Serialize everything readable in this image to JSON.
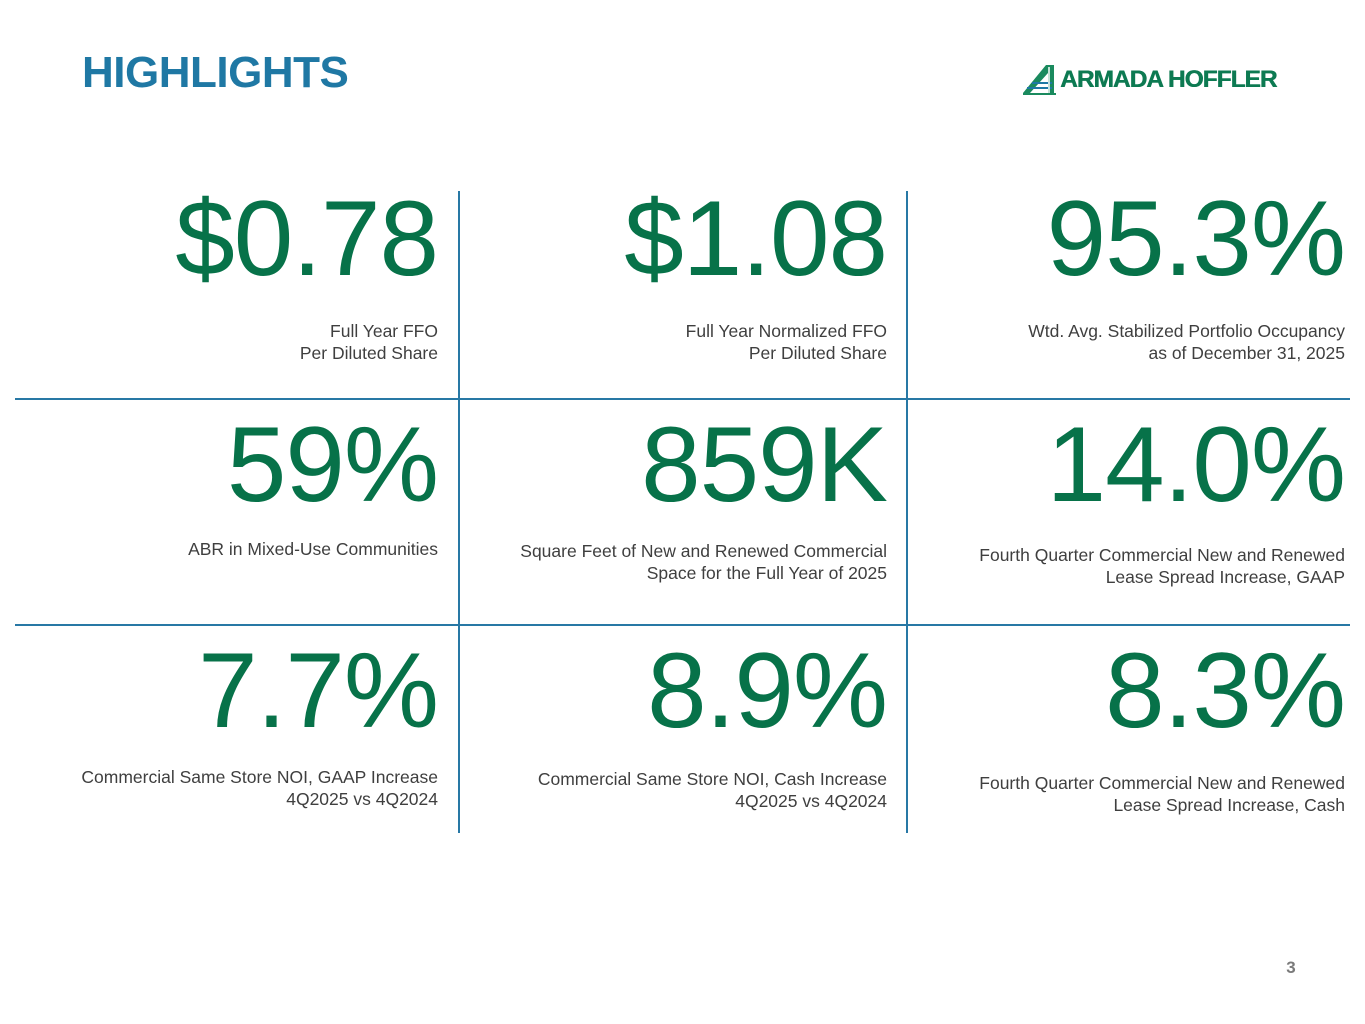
{
  "header": {
    "title": "HIGHLIGHTS",
    "logo_text": "ARMADA HOFFLER"
  },
  "metrics": [
    {
      "value": "$0.78",
      "label_lines": [
        "Full Year FFO",
        "Per Diluted Share"
      ]
    },
    {
      "value": "$1.08",
      "label_lines": [
        "Full Year Normalized FFO",
        "Per Diluted Share"
      ]
    },
    {
      "value": "95.3%",
      "label_lines": [
        "Wtd. Avg. Stabilized Portfolio Occupancy",
        "as of December 31, 2025"
      ]
    },
    {
      "value": "59%",
      "label_lines": [
        "ABR in Mixed-Use Communities"
      ]
    },
    {
      "value": "859K",
      "label_lines": [
        "Square Feet of New and Renewed Commercial",
        "Space for the Full Year of 2025"
      ]
    },
    {
      "value": "14.0%",
      "label_lines": [
        "Fourth Quarter Commercial New and Renewed",
        "Lease Spread Increase, GAAP"
      ]
    },
    {
      "value": "7.7%",
      "label_lines": [
        "Commercial Same Store NOI, GAAP Increase",
        "4Q2025 vs 4Q2024"
      ]
    },
    {
      "value": "8.9%",
      "label_lines": [
        "Commercial Same Store NOI, Cash Increase",
        "4Q2025 vs 4Q2024"
      ]
    },
    {
      "value": "8.3%",
      "label_lines": [
        "Fourth Quarter Commercial New and Renewed",
        "Lease Spread Increase, Cash"
      ]
    }
  ],
  "footer": {
    "page_number": "3"
  },
  "colors": {
    "title": "#1f78a4",
    "value": "#077249",
    "divider": "#2878a5",
    "label": "#3f3f3f"
  }
}
